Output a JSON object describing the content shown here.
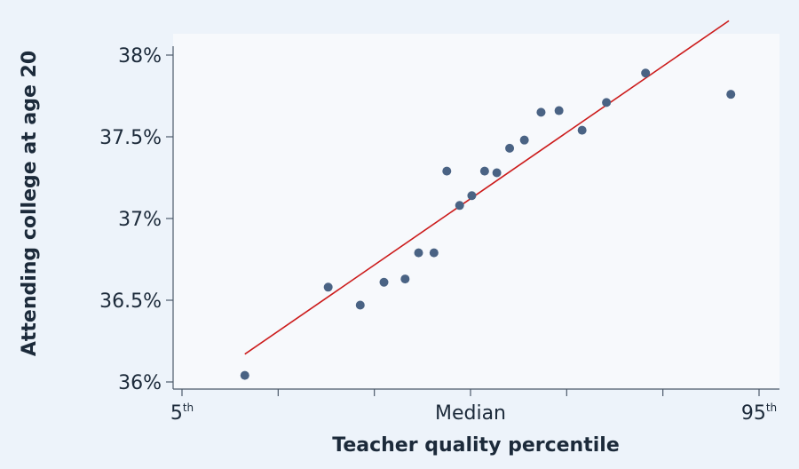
{
  "chart_data": {
    "type": "scatter",
    "title": "",
    "xlabel": "Teacher quality percentile",
    "ylabel": "Attending college at age 20",
    "xlim": [
      5,
      95
    ],
    "ylim": [
      36,
      38
    ],
    "y_ticks": [
      {
        "value": 36,
        "label": "36%"
      },
      {
        "value": 36.5,
        "label": "36.5%"
      },
      {
        "value": 37,
        "label": "37%"
      },
      {
        "value": 37.5,
        "label": "37.5%"
      },
      {
        "value": 38,
        "label": "38%"
      }
    ],
    "x_tick_positions": [
      5,
      20,
      35,
      50,
      65,
      80,
      95
    ],
    "x_tick_labels": [
      {
        "value": 5,
        "base": "5",
        "sup": "th"
      },
      {
        "value": 50,
        "base": "Median",
        "sup": ""
      },
      {
        "value": 95,
        "base": "95",
        "sup": "th"
      }
    ],
    "points": [
      {
        "x": 14.8,
        "y": 36.04
      },
      {
        "x": 27.8,
        "y": 36.58
      },
      {
        "x": 32.8,
        "y": 36.47
      },
      {
        "x": 36.5,
        "y": 36.61
      },
      {
        "x": 39.8,
        "y": 36.63
      },
      {
        "x": 41.9,
        "y": 36.79
      },
      {
        "x": 44.3,
        "y": 36.79
      },
      {
        "x": 46.3,
        "y": 37.29
      },
      {
        "x": 48.3,
        "y": 37.08
      },
      {
        "x": 50.2,
        "y": 37.14
      },
      {
        "x": 52.2,
        "y": 37.29
      },
      {
        "x": 54.1,
        "y": 37.28
      },
      {
        "x": 56.1,
        "y": 37.43
      },
      {
        "x": 58.4,
        "y": 37.48
      },
      {
        "x": 61.0,
        "y": 37.65
      },
      {
        "x": 63.8,
        "y": 37.66
      },
      {
        "x": 67.4,
        "y": 37.54
      },
      {
        "x": 71.2,
        "y": 37.71
      },
      {
        "x": 77.3,
        "y": 37.89
      },
      {
        "x": 90.6,
        "y": 37.76
      }
    ],
    "fit_line": {
      "x": [
        14.8,
        90.3
      ],
      "y": [
        36.17,
        38.21
      ]
    },
    "colors": {
      "background": "#edf3fa",
      "plot_background": "#f7f9fc",
      "point": "#4a6384",
      "fit_line": "#cc1b1b",
      "axis": "#4d5a6a"
    },
    "grid": false,
    "legend": "none"
  }
}
